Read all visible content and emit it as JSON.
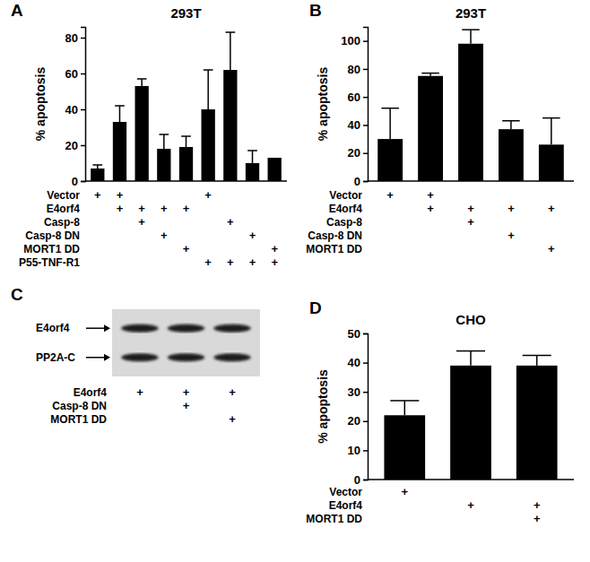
{
  "chart_data": [
    {
      "panel": "A",
      "type": "bar",
      "title": "293T",
      "y_label": "% apoptosis",
      "values": [
        7,
        33,
        53,
        18,
        19,
        40,
        62,
        10,
        13
      ],
      "errors": [
        2,
        9,
        4,
        8,
        6,
        22,
        21,
        7,
        0
      ],
      "color": "#000000",
      "ylim": [
        0,
        86
      ],
      "yticks": [
        0,
        20,
        40,
        60,
        80
      ],
      "conditions": [
        {
          "label": "Vector",
          "cells": [
            "+",
            "+",
            null,
            null,
            null,
            "+",
            null,
            null,
            null
          ]
        },
        {
          "label": "E4orf4",
          "cells": [
            null,
            "+",
            "+",
            "+",
            "+",
            null,
            null,
            null,
            null
          ]
        },
        {
          "label": "Casp-8",
          "cells": [
            null,
            null,
            "+",
            null,
            null,
            null,
            "+",
            null,
            null
          ]
        },
        {
          "label": "Casp-8 DN",
          "cells": [
            null,
            null,
            null,
            "+",
            null,
            null,
            null,
            "+",
            null
          ]
        },
        {
          "label": "MORT1 DD",
          "cells": [
            null,
            null,
            null,
            null,
            "+",
            null,
            null,
            null,
            "+"
          ]
        },
        {
          "label": "P55-TNF-R1",
          "cells": [
            null,
            null,
            null,
            null,
            null,
            "+",
            "+",
            "+",
            "+"
          ]
        }
      ]
    },
    {
      "panel": "B",
      "type": "bar",
      "title": "293T",
      "y_label": "% apoptosis",
      "values": [
        30,
        75,
        98,
        37,
        26
      ],
      "errors": [
        22,
        2,
        10,
        6,
        19
      ],
      "color": "#000000",
      "ylim": [
        0,
        110
      ],
      "yticks": [
        0,
        20,
        40,
        60,
        80,
        100
      ],
      "conditions": [
        {
          "label": "Vector",
          "cells": [
            "+",
            "+",
            null,
            null,
            null
          ]
        },
        {
          "label": "E4orf4",
          "cells": [
            null,
            "+",
            "+",
            "+",
            "+"
          ]
        },
        {
          "label": "Casp-8",
          "cells": [
            null,
            null,
            "+",
            null,
            null
          ]
        },
        {
          "label": "Casp-8 DN",
          "cells": [
            null,
            null,
            null,
            "+",
            null
          ]
        },
        {
          "label": "MORT1 DD",
          "cells": [
            null,
            null,
            null,
            null,
            "+"
          ]
        }
      ]
    },
    {
      "panel": "C",
      "type": "blot",
      "bands": [
        "E4orf4",
        "PP2A-C"
      ],
      "conditions": [
        {
          "label": "E4orf4",
          "cells": [
            "+",
            "+",
            "+"
          ]
        },
        {
          "label": "Casp-8 DN",
          "cells": [
            null,
            "+",
            null
          ]
        },
        {
          "label": "MORT1 DD",
          "cells": [
            null,
            null,
            "+"
          ]
        }
      ]
    },
    {
      "panel": "D",
      "type": "bar",
      "title": "CHO",
      "y_label": "% apoptosis",
      "values": [
        22,
        39,
        39
      ],
      "errors": [
        5,
        5,
        3.5
      ],
      "color": "#000000",
      "ylim": [
        0,
        50
      ],
      "yticks": [
        0,
        10,
        20,
        30,
        40,
        50
      ],
      "conditions": [
        {
          "label": "Vector",
          "cells": [
            "+",
            null,
            null
          ]
        },
        {
          "label": "E4orf4",
          "cells": [
            null,
            "+",
            "+"
          ]
        },
        {
          "label": "MORT1 DD",
          "cells": [
            null,
            null,
            "+"
          ]
        }
      ]
    }
  ]
}
